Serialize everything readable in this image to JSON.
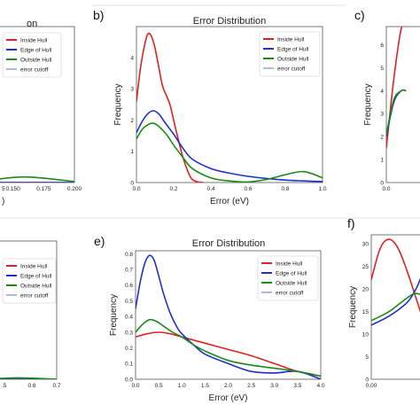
{
  "legend_labels": [
    "Inside Hull",
    "Edge of Hull",
    "Outside Hull",
    "error cutoff"
  ],
  "colors": {
    "inside": "#dd2222",
    "edge": "#1f2fcc",
    "outside": "#1a8a1a",
    "cutoff": "#5577bb"
  },
  "chart_data": [
    {
      "id": "a",
      "letter": "",
      "type": "line",
      "title": "on",
      "xlabel": ")",
      "ylabel": "",
      "xlim": [
        0.125,
        0.2
      ],
      "ylim": [
        0,
        5
      ],
      "xticks": [
        0.15,
        0.175,
        0.2
      ],
      "xtick_labels": [
        "0.150",
        "0.175",
        "0.200"
      ],
      "partial_tick_labels": [
        "5"
      ],
      "yticks": [],
      "ytick_labels": [],
      "series": [
        {
          "name": "Inside Hull",
          "color": "#dd2222",
          "x": [
            0.125,
            0.2
          ],
          "y": [
            0.0,
            0.0
          ]
        },
        {
          "name": "Edge of Hull",
          "color": "#1f2fcc",
          "x": [
            0.125,
            0.2
          ],
          "y": [
            0.0,
            0.0
          ]
        },
        {
          "name": "Outside Hull",
          "color": "#1a8a1a",
          "x": [
            0.125,
            0.14,
            0.16,
            0.18,
            0.2
          ],
          "y": [
            0.02,
            0.12,
            0.18,
            0.12,
            0.03
          ]
        }
      ]
    },
    {
      "id": "b",
      "letter": "b)",
      "type": "line",
      "title": "Error Distribution",
      "xlabel": "Error (eV)",
      "ylabel": "Frequency",
      "xlim": [
        0,
        1.0
      ],
      "ylim": [
        0,
        5
      ],
      "xticks": [
        0,
        0.2,
        0.4,
        0.6,
        0.8,
        1.0
      ],
      "xtick_labels": [
        "0.0",
        "0.2",
        "0.4",
        "0.6",
        "0.8",
        "1.0"
      ],
      "yticks": [
        0,
        1,
        2,
        3,
        4
      ],
      "ytick_labels": [
        "0",
        "1",
        "2",
        "3",
        "4"
      ],
      "series": [
        {
          "name": "Inside Hull",
          "color": "#dd2222",
          "x": [
            0.0,
            0.02,
            0.04,
            0.06,
            0.08,
            0.1,
            0.12,
            0.14,
            0.16,
            0.18,
            0.2,
            0.22,
            0.25,
            0.28,
            0.3,
            0.33,
            0.36
          ],
          "y": [
            2.6,
            3.6,
            4.3,
            4.75,
            4.7,
            4.3,
            3.7,
            3.1,
            2.8,
            2.5,
            2.0,
            1.5,
            0.8,
            0.3,
            0.1,
            0.02,
            0.0
          ]
        },
        {
          "name": "Edge of Hull",
          "color": "#1f2fcc",
          "x": [
            0.0,
            0.03,
            0.06,
            0.09,
            0.12,
            0.15,
            0.2,
            0.25,
            0.3,
            0.4,
            0.5,
            0.6,
            0.7,
            0.8,
            0.9,
            1.0
          ],
          "y": [
            1.6,
            1.95,
            2.2,
            2.3,
            2.2,
            1.95,
            1.55,
            1.1,
            0.75,
            0.45,
            0.3,
            0.2,
            0.13,
            0.08,
            0.05,
            0.03
          ]
        },
        {
          "name": "Outside Hull",
          "color": "#1a8a1a",
          "x": [
            0.0,
            0.03,
            0.06,
            0.09,
            0.12,
            0.16,
            0.2,
            0.25,
            0.3,
            0.4,
            0.5,
            0.6,
            0.7,
            0.8,
            0.9,
            1.0
          ],
          "y": [
            1.4,
            1.7,
            1.85,
            1.9,
            1.8,
            1.55,
            1.2,
            0.8,
            0.45,
            0.15,
            0.05,
            0.02,
            0.1,
            0.25,
            0.35,
            0.15
          ]
        }
      ]
    },
    {
      "id": "c",
      "letter": "c)",
      "type": "line",
      "title": "",
      "xlabel": "",
      "ylabel": "Frequency",
      "xlim": [
        0,
        0.3
      ],
      "ylim": [
        0,
        6.8
      ],
      "xticks": [
        0.0
      ],
      "xtick_labels": [
        "0.0"
      ],
      "yticks": [
        0,
        1,
        2,
        3,
        4,
        5,
        6
      ],
      "ytick_labels": [
        "0",
        "1",
        "2",
        "3",
        "4",
        "5",
        "6"
      ],
      "series": [
        {
          "name": "Inside Hull",
          "color": "#dd2222",
          "x": [
            0.0,
            0.03,
            0.06,
            0.08
          ],
          "y": [
            1.5,
            4.5,
            6.7,
            6.8
          ]
        },
        {
          "name": "Edge of Hull",
          "color": "#1f2fcc",
          "x": [
            0.0,
            0.03,
            0.06,
            0.08
          ],
          "y": [
            2.0,
            3.5,
            4.0,
            4.0
          ]
        },
        {
          "name": "Outside Hull",
          "color": "#1a8a1a",
          "x": [
            0.0,
            0.03,
            0.06,
            0.08
          ],
          "y": [
            2.1,
            3.6,
            4.0,
            4.0
          ]
        }
      ]
    },
    {
      "id": "d",
      "letter": "",
      "type": "line",
      "title": "",
      "xlabel": "",
      "ylabel": "",
      "xlim": [
        0.4,
        0.7
      ],
      "ylim": [
        0,
        1
      ],
      "xticks": [
        0.6,
        0.7
      ],
      "xtick_labels": [
        "0.6",
        "0.7"
      ],
      "partial_tick_labels": [
        ".5"
      ],
      "yticks": [],
      "ytick_labels": [],
      "series": [
        {
          "name": "Inside Hull",
          "color": "#dd2222",
          "x": [
            0.4,
            0.7
          ],
          "y": [
            0.0,
            0.0
          ]
        },
        {
          "name": "Edge of Hull",
          "color": "#1f2fcc",
          "x": [
            0.4,
            0.7
          ],
          "y": [
            0.0,
            0.0
          ]
        },
        {
          "name": "Outside Hull",
          "color": "#1a8a1a",
          "x": [
            0.4,
            0.55,
            0.7
          ],
          "y": [
            0.0,
            0.01,
            0.0
          ]
        }
      ]
    },
    {
      "id": "e",
      "letter": "e)",
      "type": "line",
      "title": "Error Distribution",
      "xlabel": "Error (eV)",
      "ylabel": "Frequency",
      "xlim": [
        0,
        4.0
      ],
      "ylim": [
        0,
        0.82
      ],
      "xticks": [
        0,
        0.5,
        1.0,
        1.5,
        2.0,
        2.5,
        3.0,
        3.5,
        4.0
      ],
      "xtick_labels": [
        "0.0",
        "0.5",
        "1.0",
        "1.5",
        "2.0",
        "2.5",
        "3.0",
        "3.5",
        "4.0"
      ],
      "yticks": [
        0,
        0.1,
        0.2,
        0.3,
        0.4,
        0.5,
        0.6,
        0.7,
        0.8
      ],
      "ytick_labels": [
        "0.0",
        "0.1",
        "0.2",
        "0.3",
        "0.4",
        "0.5",
        "0.6",
        "0.7",
        "0.8"
      ],
      "series": [
        {
          "name": "Inside Hull",
          "color": "#dd2222",
          "x": [
            0.0,
            0.25,
            0.5,
            0.75,
            1.0,
            1.5,
            2.0,
            2.5,
            3.0,
            3.5,
            4.0
          ],
          "y": [
            0.27,
            0.29,
            0.3,
            0.29,
            0.27,
            0.23,
            0.19,
            0.15,
            0.1,
            0.05,
            0.02
          ]
        },
        {
          "name": "Edge of Hull",
          "color": "#1f2fcc",
          "x": [
            0.0,
            0.1,
            0.2,
            0.3,
            0.4,
            0.5,
            0.6,
            0.75,
            0.9,
            1.0,
            1.25,
            1.5,
            2.0,
            2.5,
            3.0,
            3.5,
            4.0
          ],
          "y": [
            0.45,
            0.62,
            0.74,
            0.79,
            0.76,
            0.66,
            0.55,
            0.42,
            0.33,
            0.29,
            0.22,
            0.16,
            0.1,
            0.05,
            0.04,
            0.05,
            0.0
          ]
        },
        {
          "name": "Outside Hull",
          "color": "#1a8a1a",
          "x": [
            0.0,
            0.15,
            0.3,
            0.45,
            0.6,
            0.8,
            1.0,
            1.25,
            1.5,
            2.0,
            2.5,
            3.0,
            3.5,
            4.0
          ],
          "y": [
            0.3,
            0.35,
            0.38,
            0.37,
            0.34,
            0.3,
            0.27,
            0.22,
            0.18,
            0.12,
            0.09,
            0.07,
            0.05,
            0.02
          ]
        }
      ]
    },
    {
      "id": "f",
      "letter": "f)",
      "type": "line",
      "title": "",
      "xlabel": "",
      "ylabel": "Frequency",
      "xlim": [
        0,
        0.1
      ],
      "ylim": [
        0,
        32
      ],
      "xticks": [
        0.0
      ],
      "xtick_labels": [
        "0.00"
      ],
      "yticks": [
        0,
        5,
        10,
        15,
        20,
        25,
        30
      ],
      "ytick_labels": [
        "0",
        "5",
        "10",
        "15",
        "20",
        "25",
        "30"
      ],
      "series": [
        {
          "name": "Inside Hull",
          "color": "#dd2222",
          "x": [
            0.0,
            0.01,
            0.02,
            0.03,
            0.04,
            0.05,
            0.06,
            0.07,
            0.08,
            0.09,
            0.1
          ],
          "y": [
            22,
            29,
            31,
            29,
            24,
            18,
            12,
            7,
            4,
            2,
            1
          ]
        },
        {
          "name": "Edge of Hull",
          "color": "#1f2fcc",
          "x": [
            0.0,
            0.02,
            0.04,
            0.05,
            0.06,
            0.07,
            0.08,
            0.09,
            0.1
          ],
          "y": [
            12,
            14,
            17,
            20,
            24,
            22,
            18,
            12,
            8
          ]
        },
        {
          "name": "Outside Hull",
          "color": "#1a8a1a",
          "x": [
            0.0,
            0.02,
            0.04,
            0.05,
            0.06,
            0.07,
            0.08,
            0.09,
            0.1
          ],
          "y": [
            13,
            15,
            18,
            19,
            18,
            15,
            12,
            9,
            6
          ]
        }
      ]
    }
  ]
}
